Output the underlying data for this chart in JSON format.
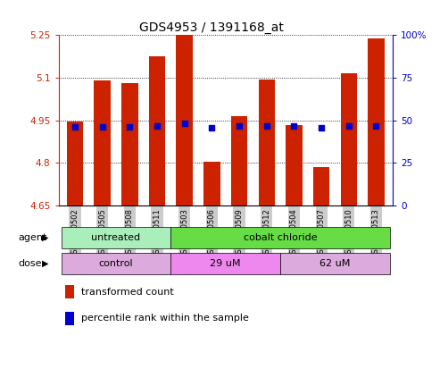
{
  "title": "GDS4953 / 1391168_at",
  "samples": [
    "GSM1240502",
    "GSM1240505",
    "GSM1240508",
    "GSM1240511",
    "GSM1240503",
    "GSM1240506",
    "GSM1240509",
    "GSM1240512",
    "GSM1240504",
    "GSM1240507",
    "GSM1240510",
    "GSM1240513"
  ],
  "bar_values": [
    4.945,
    5.09,
    5.08,
    5.175,
    5.25,
    4.805,
    4.965,
    5.095,
    4.935,
    4.785,
    5.115,
    5.24
  ],
  "blue_dot_values": [
    4.928,
    4.928,
    4.928,
    4.931,
    4.94,
    4.924,
    4.931,
    4.931,
    4.931,
    4.924,
    4.931,
    4.931
  ],
  "ymin": 4.65,
  "ymax": 5.25,
  "yticks": [
    4.65,
    4.8,
    4.95,
    5.1,
    5.25
  ],
  "ytick_labels": [
    "4.65",
    "4.8",
    "4.95",
    "5.1",
    "5.25"
  ],
  "right_yticks": [
    0,
    25,
    50,
    75,
    100
  ],
  "right_ytick_labels": [
    "0",
    "25",
    "50",
    "75",
    "100%"
  ],
  "bar_color": "#cc2200",
  "dot_color": "#0000cc",
  "bar_width": 0.6,
  "agent_groups": [
    {
      "label": "untreated",
      "start": 0,
      "end": 3,
      "color": "#aaeebb"
    },
    {
      "label": "cobalt chloride",
      "start": 4,
      "end": 11,
      "color": "#66dd44"
    }
  ],
  "dose_groups": [
    {
      "label": "control",
      "start": 0,
      "end": 3,
      "color": "#ddaadd"
    },
    {
      "label": "29 uM",
      "start": 4,
      "end": 7,
      "color": "#ee88ee"
    },
    {
      "label": "62 uM",
      "start": 8,
      "end": 11,
      "color": "#ddaadd"
    }
  ],
  "legend_items": [
    {
      "label": "transformed count",
      "color": "#cc2200"
    },
    {
      "label": "percentile rank within the sample",
      "color": "#0000cc"
    }
  ],
  "agent_label": "agent",
  "dose_label": "dose",
  "title_fontsize": 10,
  "tick_fontsize": 7.5,
  "sample_fontsize": 6.0,
  "label_fontsize": 8,
  "grid_color": "#000000",
  "left_tick_color": "#cc2200",
  "right_tick_color": "#0000cc",
  "bg_color": "#ffffff"
}
